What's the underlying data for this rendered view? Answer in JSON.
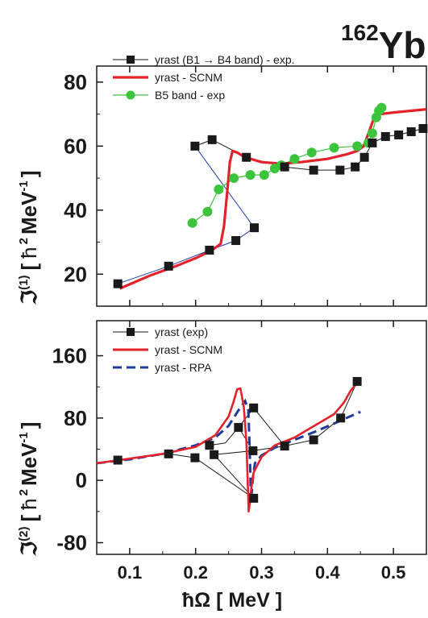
{
  "nucleus": {
    "mass": "162",
    "symbol": "Yb"
  },
  "xlabel": "ħΩ [ MeV ]",
  "colors": {
    "exp": "#1a1a1a",
    "exp_link": "#1f3fa8",
    "scnm": "#e3222b",
    "rpa": "#1f3b9c",
    "b5": "#3cc43c"
  },
  "chart_data": [
    {
      "type": "line",
      "panel": "top",
      "ylabel": "ℑ(1) [ ħ² MeV⁻¹ ]",
      "ylabel_parts": {
        "sym": "ℑ",
        "sup": "(1)",
        "open": "[",
        "hbar": "ħ",
        "hsup": "2",
        "unit": "MeV",
        "usup": "-1",
        "close": "]"
      },
      "xlim": [
        0.05,
        0.55
      ],
      "ylim": [
        10,
        85
      ],
      "xticks": [
        0.1,
        0.2,
        0.3,
        0.4,
        0.5
      ],
      "yticks": [
        20,
        40,
        60,
        80
      ],
      "yticks_minor": [
        30,
        50,
        70
      ],
      "legend": {
        "position": "top-left",
        "entries": [
          "yrast (B1 → B4 band) - exp.",
          "yrast - SCNM",
          "B5 band - exp"
        ]
      },
      "series": [
        {
          "name": "yrast (B1 → B4 band) - exp.",
          "style": "markers-square",
          "x": [
            0.082,
            0.159,
            0.221,
            0.261,
            0.289,
            0.199,
            0.225,
            0.277,
            0.335,
            0.379,
            0.419,
            0.442,
            0.456,
            0.468,
            0.488,
            0.508,
            0.527,
            0.545
          ],
          "y": [
            17,
            22.5,
            27.5,
            30.5,
            34.5,
            60,
            62,
            56.5,
            53.5,
            52.5,
            52.5,
            53.5,
            56.5,
            61,
            63,
            63.5,
            64.5,
            65.5
          ]
        },
        {
          "name": "yrast - SCNM",
          "style": "solid",
          "x": [
            0.085,
            0.13,
            0.17,
            0.2,
            0.225,
            0.238,
            0.243,
            0.248,
            0.252,
            0.256,
            0.263,
            0.275,
            0.3,
            0.33,
            0.36,
            0.4,
            0.43,
            0.445,
            0.455,
            0.463,
            0.47,
            0.48,
            0.5,
            0.525,
            0.55
          ],
          "y": [
            15.5,
            19.5,
            22.5,
            25,
            27.5,
            29.5,
            35,
            46,
            55,
            58.5,
            58,
            56.5,
            55,
            54.5,
            55,
            56,
            57.5,
            58.5,
            60,
            64.5,
            68.5,
            70,
            70.5,
            71,
            71.5
          ]
        },
        {
          "name": "B5 band - exp",
          "style": "markers-circle",
          "x": [
            0.195,
            0.218,
            0.235,
            0.258,
            0.283,
            0.304,
            0.32,
            0.33,
            0.35,
            0.376,
            0.41,
            0.445,
            0.462,
            0.468,
            0.474,
            0.478,
            0.482
          ],
          "y": [
            36,
            39.5,
            46.5,
            50,
            51,
            51,
            53,
            54,
            56,
            58,
            59.5,
            60,
            61,
            64,
            69,
            71,
            72
          ]
        }
      ]
    },
    {
      "type": "line",
      "panel": "bottom",
      "ylabel": "ℑ(2) [ ħ² MeV⁻¹ ]",
      "ylabel_parts": {
        "sym": "ℑ",
        "sup": "(2)",
        "open": "[",
        "hbar": "ħ",
        "hsup": "2",
        "unit": "MeV",
        "usup": "-1",
        "close": "]"
      },
      "xlim": [
        0.05,
        0.55
      ],
      "ylim": [
        -95,
        205
      ],
      "xticks": [
        0.1,
        0.2,
        0.3,
        0.4,
        0.5
      ],
      "yticks": [
        -80,
        0,
        80,
        160
      ],
      "yticks_minor": [
        -40,
        40,
        120
      ],
      "legend": {
        "position": "top-left",
        "entries": [
          "yrast (exp)",
          "yrast - SCNM",
          "yrast - RPA"
        ]
      },
      "series": [
        {
          "name": "yrast (exp)",
          "style": "markers-square",
          "x": [
            0.082,
            0.159,
            0.199,
            0.288,
            0.228,
            0.287,
            0.265,
            0.245,
            0.221,
            0.288,
            0.335,
            0.379,
            0.42,
            0.445
          ],
          "y": [
            26,
            34,
            29,
            -23,
            33,
            38,
            68,
            48,
            45,
            93,
            44,
            52,
            80,
            127
          ],
          "x2": [
            0.199,
            0.288,
            0.228,
            0.287,
            0.265,
            0.221,
            0.288,
            0.335,
            0.379,
            0.42,
            0.445
          ],
          "y2": [
            29,
            -23,
            33,
            38,
            68,
            45,
            93,
            44,
            52,
            80,
            127
          ]
        },
        {
          "name": "yrast - SCNM",
          "style": "solid",
          "x": [
            0.05,
            0.1,
            0.15,
            0.2,
            0.23,
            0.25,
            0.258,
            0.263,
            0.268,
            0.273,
            0.277,
            0.279,
            0.2805,
            0.282,
            0.2845,
            0.288,
            0.3,
            0.32,
            0.35,
            0.38,
            0.41,
            0.425,
            0.435,
            0.445,
            0.45
          ],
          "y": [
            22,
            28,
            34,
            43,
            58,
            82,
            102,
            117,
            118,
            95,
            50,
            0,
            -40,
            -30,
            -10,
            10,
            30,
            45,
            55,
            70,
            85,
            100,
            115,
            125,
            125
          ]
        },
        {
          "name": "yrast - RPA",
          "style": "dashed",
          "x": [
            0.05,
            0.1,
            0.15,
            0.2,
            0.23,
            0.25,
            0.265,
            0.275,
            0.28,
            0.282,
            0.2835,
            0.285,
            0.287,
            0.29,
            0.3,
            0.32,
            0.35,
            0.38,
            0.41,
            0.45
          ],
          "y": [
            22,
            27,
            34,
            45,
            55,
            70,
            90,
            102,
            90,
            40,
            -10,
            -18,
            5,
            22,
            32,
            42,
            52,
            62,
            73,
            88
          ]
        }
      ]
    }
  ]
}
